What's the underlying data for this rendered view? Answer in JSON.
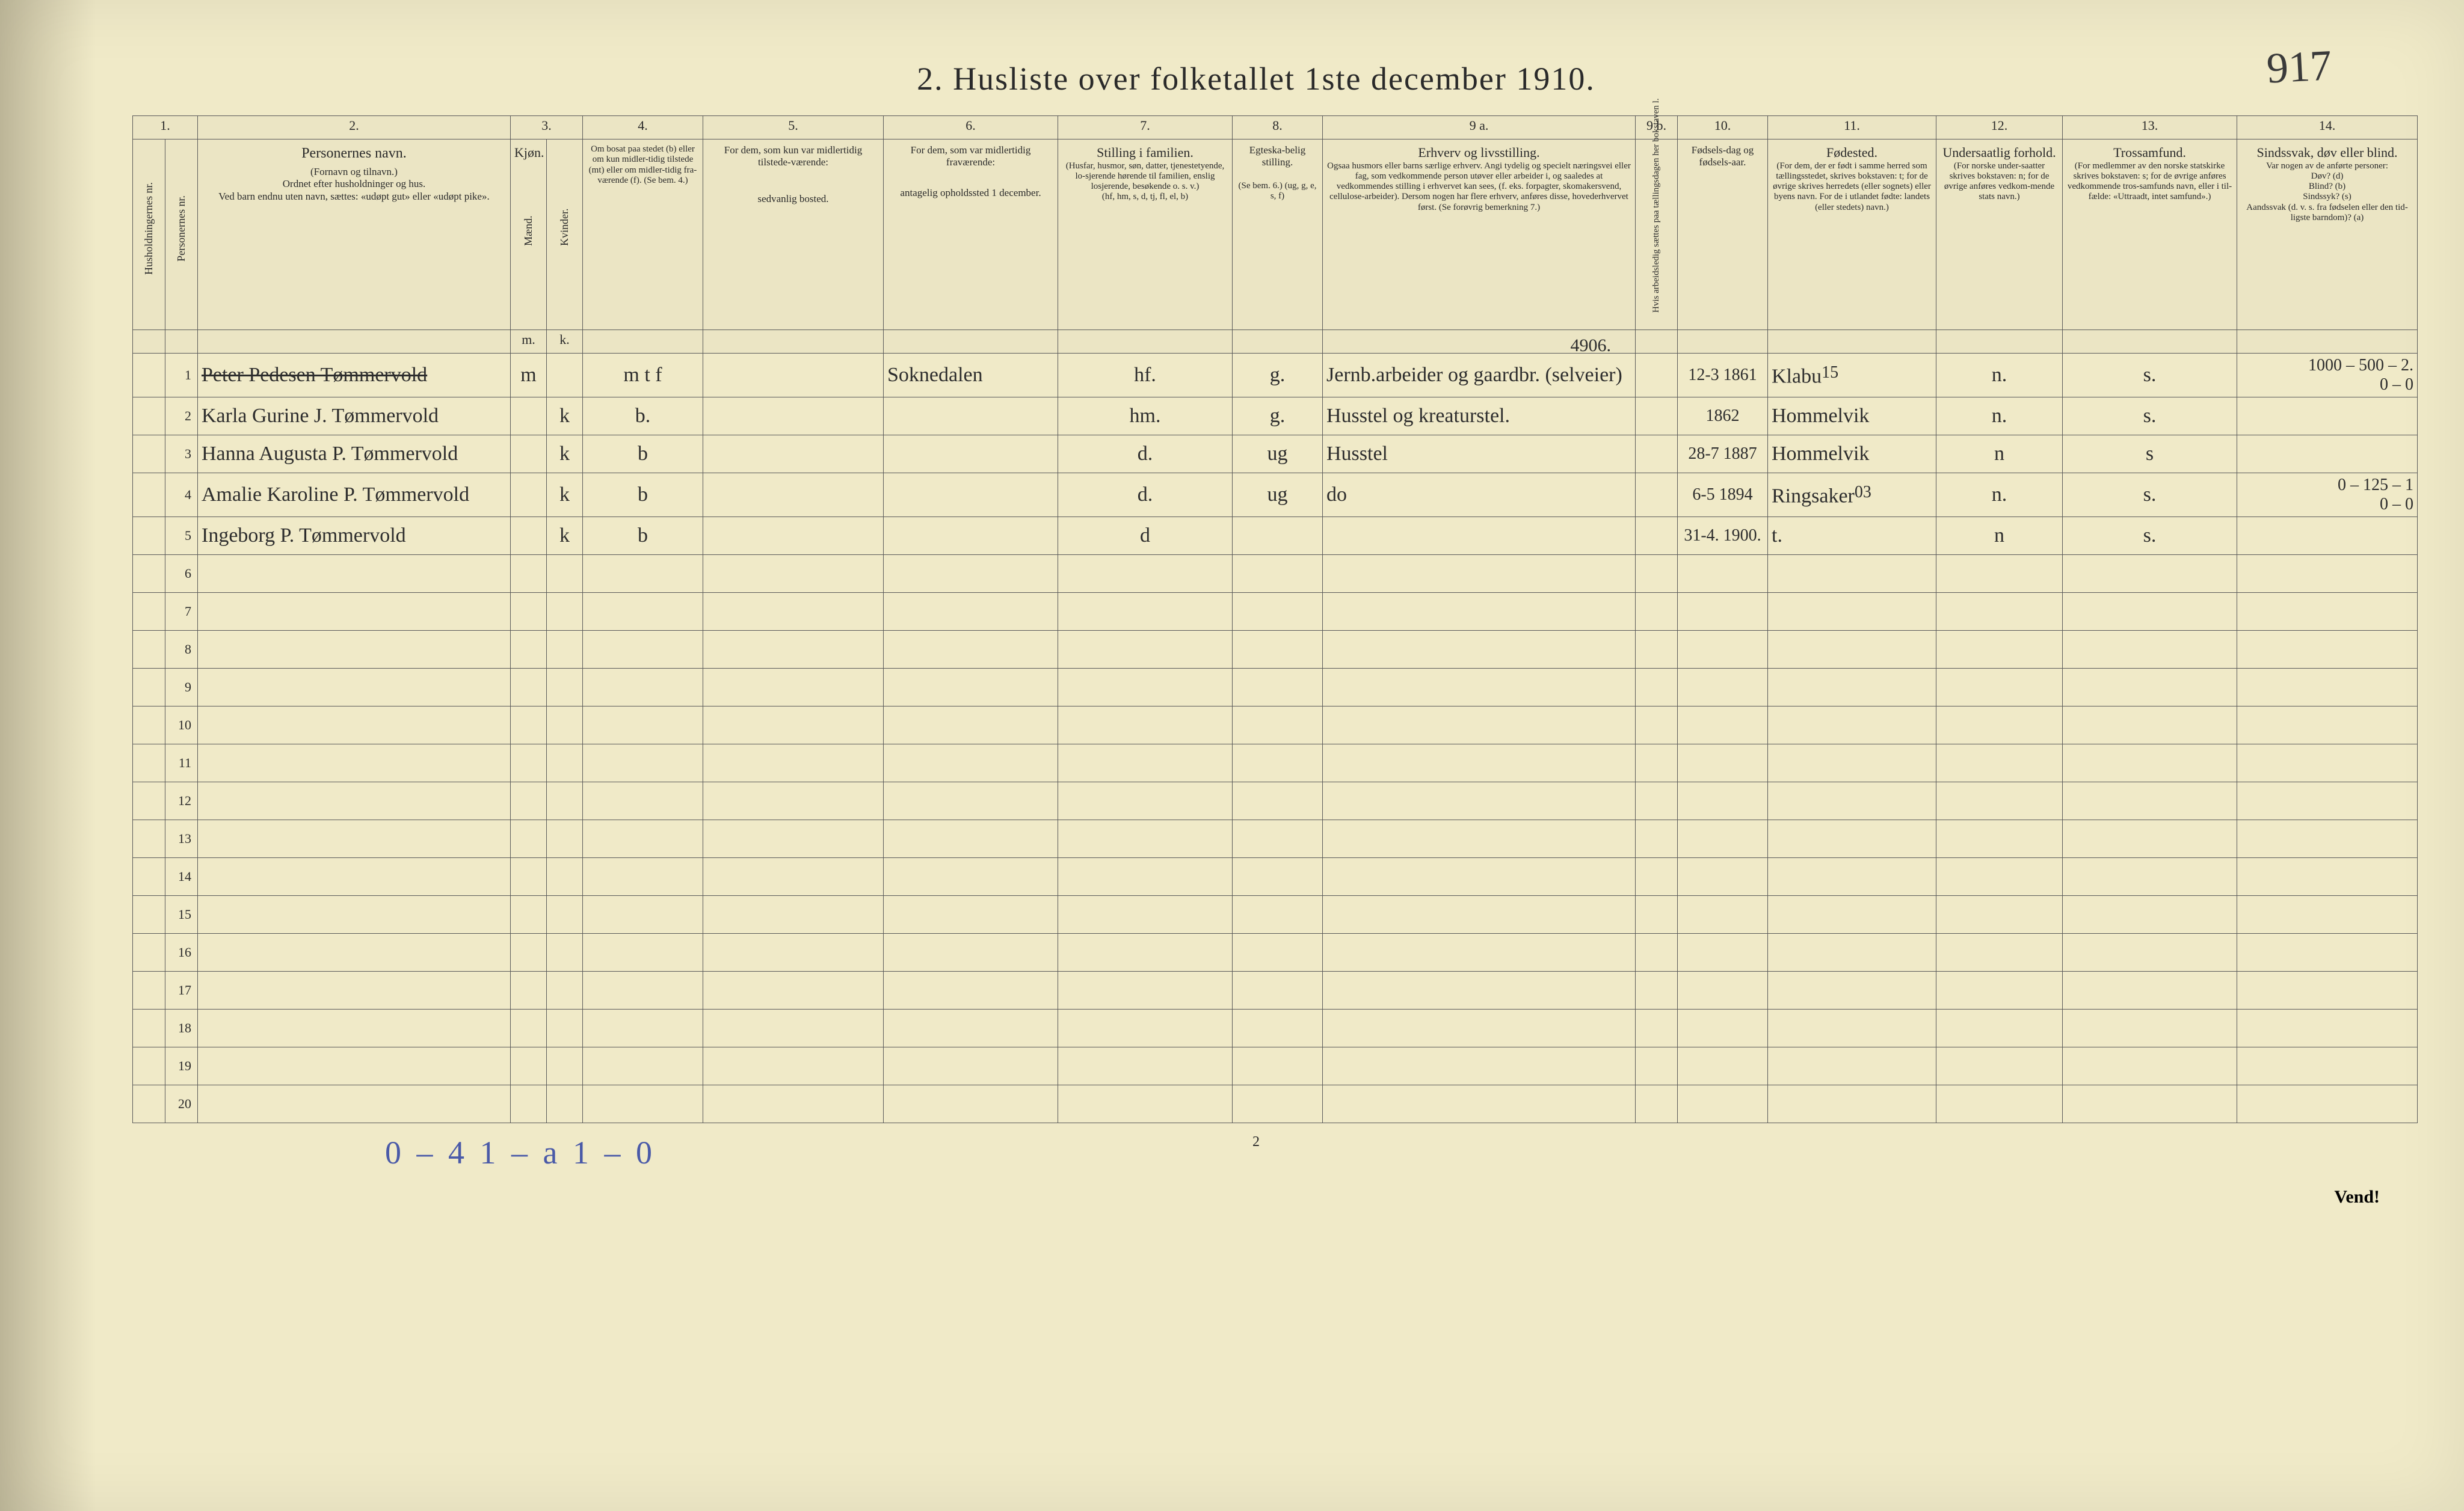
{
  "corner_note": "917",
  "title": "2.  Husliste over folketallet 1ste december 1910.",
  "colnums": [
    "1.",
    "",
    "2.",
    "3.",
    "4.",
    "5.",
    "6.",
    "7.",
    "8.",
    "9 a.",
    "9 b.",
    "10.",
    "11.",
    "12.",
    "13.",
    "14."
  ],
  "headers": {
    "c1": "Husholdningernes nr.",
    "c2": "Personernes nr.",
    "c3_title": "Personernes navn.",
    "c3_sub": "(Fornavn og tilnavn.)\nOrdnet efter husholdninger og hus.\nVed barn endnu uten navn, sættes: «udøpt gut» eller «udøpt pike».",
    "c4_title": "Kjøn.",
    "c4_m": "Mænd.",
    "c4_k": "Kvinder.",
    "c5_title": "Om bosat paa stedet (b) eller om kun midler-tidig tilstede (mt) eller om midler-tidig fra-værende (f). (Se bem. 4.)",
    "c6_title": "For dem, som kun var midlertidig tilstede-værende:",
    "c6_sub": "sedvanlig bosted.",
    "c7_title": "For dem, som var midlertidig fraværende:",
    "c7_sub": "antagelig opholdssted 1 december.",
    "c8_title": "Stilling i familien.",
    "c8_sub": "(Husfar, husmor, søn, datter, tjenestetyende, lo-sjerende hørende til familien, enslig losjerende, besøkende o. s. v.)\n(hf, hm, s, d, tj, fl, el, b)",
    "c9_title": "Egteska-belig stilling.",
    "c9_sub": "(Se bem. 6.) (ug, g, e, s, f)",
    "c10_title": "Erhverv og livsstilling.",
    "c10_sub": "Ogsaa husmors eller barns særlige erhverv. Angi tydelig og specielt næringsvei eller fag, som vedkommende person utøver eller arbeider i, og saaledes at vedkommendes stilling i erhvervet kan sees, (f. eks. forpagter, skomakersvend, cellulose-arbeider). Dersom nogen har flere erhverv, anføres disse, hovederhvervet først. (Se forøvrig bemerkning 7.)",
    "c11": "Hvis arbeidsledig sættes paa tællingsdagen her bokstaven l.",
    "c12_title": "Fødsels-dag og fødsels-aar.",
    "c13_title": "Fødested.",
    "c13_sub": "(For dem, der er født i samme herred som tællingsstedet, skrives bokstaven: t; for de øvrige skrives herredets (eller sognets) eller byens navn. For de i utlandet fødte: landets (eller stedets) navn.)",
    "c14_title": "Undersaatlig forhold.",
    "c14_sub": "(For norske under-saatter skrives bokstaven: n; for de øvrige anføres vedkom-mende stats navn.)",
    "c15_title": "Trossamfund.",
    "c15_sub": "(For medlemmer av den norske statskirke skrives bokstaven: s; for de øvrige anføres vedkommende tros-samfunds navn, eller i til-fælde: «Uttraadt, intet samfund».)",
    "c16_title": "Sindssvak, døv eller blind.",
    "c16_sub": "Var nogen av de anførte personer:\nDøv? (d)\nBlind? (b)\nSindssyk? (s)\nAandssvak (d. v. s. fra fødselen eller den tid-ligste barndom)? (a)"
  },
  "mk_labels": {
    "m": "m.",
    "k": "k."
  },
  "above_row1": "4906.",
  "above_birth_sup": "15",
  "rows": [
    {
      "n": "1",
      "name": "Peter Pedesen Tømmervold",
      "struck": true,
      "sex_m": "m",
      "sex_k": "",
      "res": "m t f",
      "temp_present": "",
      "temp_absent": "Soknedalen",
      "famrole": "hf.",
      "marital": "g.",
      "occupation": "Jernb.arbeider og gaardbr. (selveier)",
      "ledig": "",
      "birth": "12-3 1861",
      "birthplace": "Klabu",
      "nation": "n.",
      "faith": "s.",
      "disab": "1000 – 500 – 2.\n0   –   0"
    },
    {
      "n": "2",
      "name": "Karla Gurine J. Tømmervold",
      "sex_m": "",
      "sex_k": "k",
      "res": "b.",
      "temp_present": "",
      "temp_absent": "",
      "famrole": "hm.",
      "marital": "g.",
      "occupation": "Husstel og kreaturstel.",
      "ledig": "",
      "birth": "1862",
      "birthplace": "Hommelvik",
      "nation": "n.",
      "faith": "s.",
      "disab": ""
    },
    {
      "n": "3",
      "name": "Hanna Augusta P. Tømmervold",
      "sex_m": "",
      "sex_k": "k",
      "res": "b",
      "temp_present": "",
      "temp_absent": "",
      "famrole": "d.",
      "marital": "ug",
      "occupation": "Husstel",
      "ledig": "",
      "birth": "28-7 1887",
      "birthplace": "Hommelvik",
      "nation": "n",
      "faith": "s",
      "disab": ""
    },
    {
      "n": "4",
      "name": "Amalie Karoline P. Tømmervold",
      "sex_m": "",
      "sex_k": "k",
      "res": "b",
      "temp_present": "",
      "temp_absent": "",
      "famrole": "d.",
      "marital": "ug",
      "occupation": "do",
      "ledig": "",
      "birth": "6-5 1894",
      "birthplace": "Ringsaker",
      "birthplace_sup": "03",
      "nation": "n.",
      "faith": "s.",
      "disab": "0 – 125 – 1\n0 –  0"
    },
    {
      "n": "5",
      "name": "Ingeborg P. Tømmervold",
      "sex_m": "",
      "sex_k": "k",
      "res": "b",
      "temp_present": "",
      "temp_absent": "",
      "famrole": "d",
      "marital": "",
      "occupation": "",
      "ledig": "",
      "birth": "31-4. 1900.",
      "birthplace": "t.",
      "nation": "n",
      "faith": "s.",
      "disab": ""
    }
  ],
  "blank_row_start": 6,
  "blank_row_end": 20,
  "footer_blue": "0 – 4  1 – a   1 – 0",
  "page_number": "2",
  "vend": "Vend!"
}
